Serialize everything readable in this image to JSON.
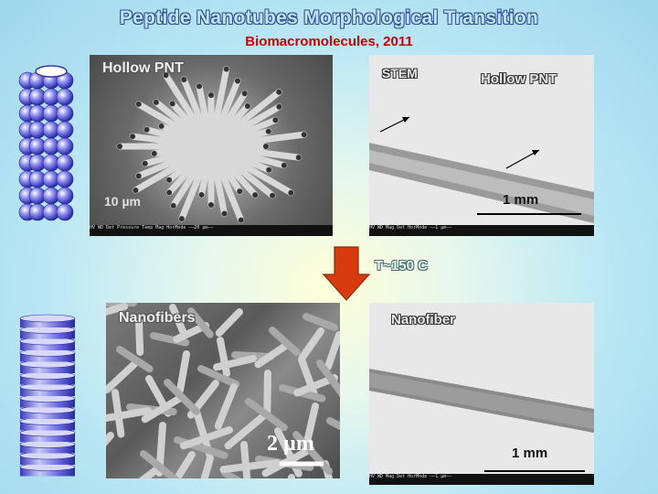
{
  "slide": {
    "title": "Peptide Nanotubes Morphological Transition",
    "subtitle": "Biomacromolecules, 2011",
    "transition_label": "T~150 C"
  },
  "panels": {
    "hollow_sem": {
      "label": "Hollow PNT",
      "scale": "10 µm"
    },
    "hollow_stem": {
      "label_left": "STEM",
      "label_right": "Hollow PNT",
      "scale": "1 mm"
    },
    "fibers_sem": {
      "label": "Nanofibers",
      "scale": "2 µm"
    },
    "fiber_stem": {
      "label": "Nanofiber",
      "scale": "1 mm"
    }
  },
  "colors": {
    "title_fill": "#bfe4f5",
    "subtitle": "#cc0000",
    "arrow": "#d83a10",
    "sphere": "#6a6ae0",
    "disk": "#5a5ad0"
  },
  "icons": {
    "tube_model": "stacked-ring-nanotube-icon",
    "fiber_model": "stacked-disk-nanofiber-icon",
    "transition_arrow": "down-arrow-icon"
  }
}
